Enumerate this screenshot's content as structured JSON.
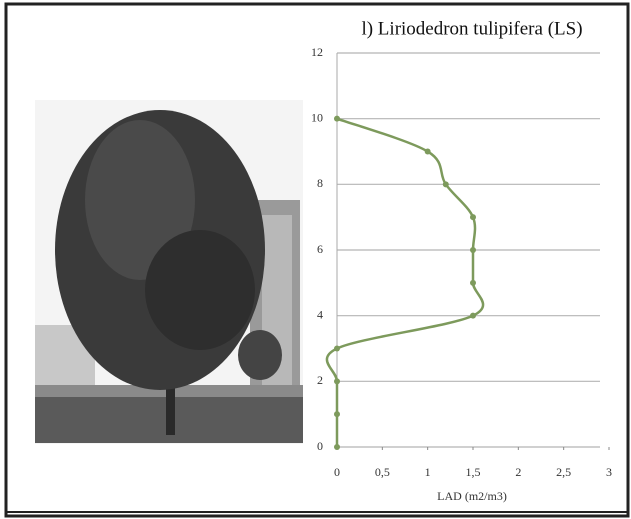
{
  "chart_data": {
    "type": "line",
    "title": "l) Liriodedron tulipifera (LS)",
    "x_label": "LAD (m2/m3)",
    "series": [
      {
        "color": "#7d9a5c",
        "x": [
          0,
          0,
          0,
          0,
          1.5,
          1.5,
          1.5,
          1.5,
          1.2,
          1.0,
          0
        ],
        "y": [
          0,
          1,
          2,
          3,
          4,
          5,
          6,
          7,
          8,
          9,
          10
        ]
      }
    ],
    "xlim": [
      0,
      3
    ],
    "xticks": [
      0,
      {
        "value": 0.5,
        "label": "0,5"
      },
      1,
      {
        "value": 1.5,
        "label": "1,5"
      },
      2,
      {
        "value": 2.5,
        "label": "2,5"
      },
      3
    ],
    "ylim": [
      0,
      12
    ],
    "yticks": [
      0,
      2,
      4,
      6,
      8,
      10,
      12
    ],
    "grid": true
  }
}
